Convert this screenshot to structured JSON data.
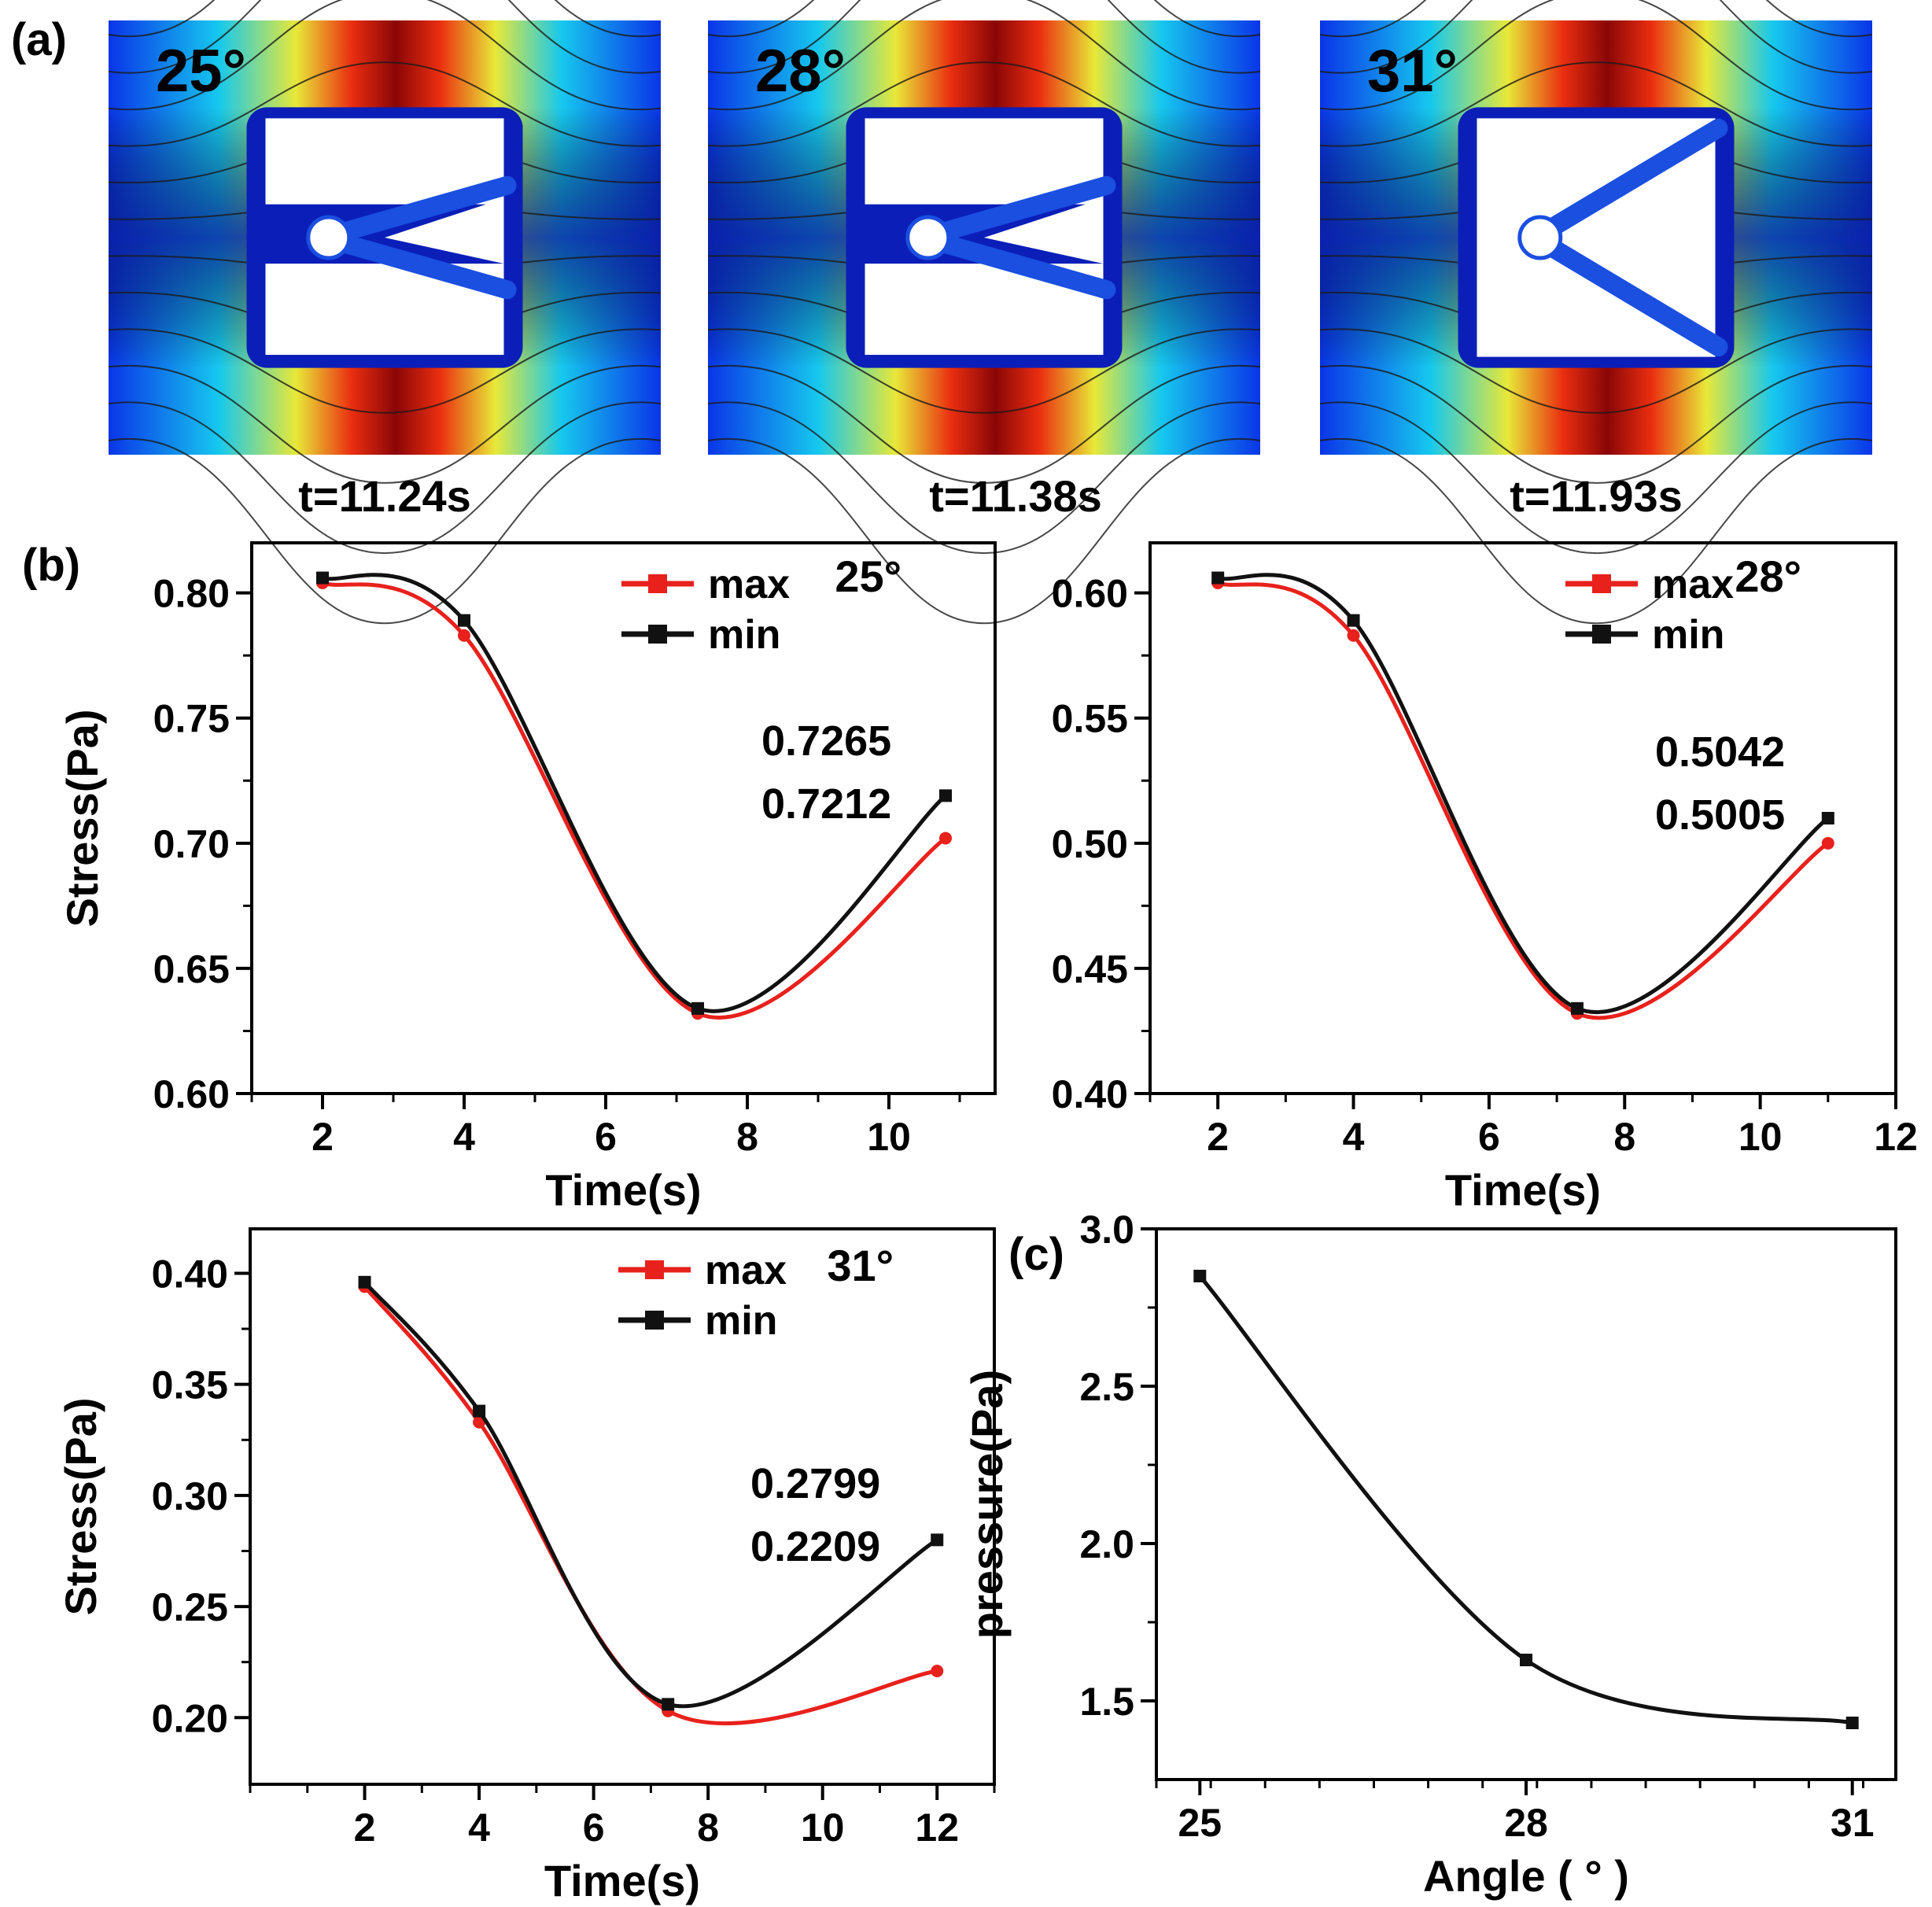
{
  "panel_labels": {
    "a": "(a)",
    "b": "(b)",
    "c": "(c)"
  },
  "simulations": [
    {
      "angle": "25°",
      "time": "t=11.24s",
      "arm_angle_deg": 25
    },
    {
      "angle": "28°",
      "time": "t=11.38s",
      "arm_angle_deg": 28
    },
    {
      "angle": "31°",
      "time": "t=11.93s",
      "arm_angle_deg": 31
    }
  ],
  "colors": {
    "max": "#e8211c",
    "min": "#111111",
    "background": "#ffffff"
  },
  "chart_data": [
    {
      "type": "line",
      "panel": "b",
      "angle_label": "25°",
      "xlabel": "Time(s)",
      "ylabel": "Stress(Pa)",
      "xlim": [
        1,
        11.5
      ],
      "ylim": [
        0.6,
        0.82
      ],
      "xticks": [
        2,
        4,
        6,
        8,
        10
      ],
      "yticks": [
        0.6,
        0.65,
        0.7,
        0.75,
        0.8
      ],
      "ytick_labels": [
        "0.60",
        "0.65",
        "0.70",
        "0.75",
        "0.80"
      ],
      "legend": [
        "max",
        "min"
      ],
      "series": [
        {
          "name": "max",
          "x": [
            2,
            4,
            7.3,
            10.8
          ],
          "y": [
            0.804,
            0.783,
            0.632,
            0.702
          ]
        },
        {
          "name": "min",
          "x": [
            2,
            4,
            7.3,
            10.8
          ],
          "y": [
            0.806,
            0.789,
            0.634,
            0.719
          ]
        }
      ],
      "annotations": [
        "0.7265",
        "0.7212"
      ]
    },
    {
      "type": "line",
      "panel": "b",
      "angle_label": "28°",
      "xlabel": "Time(s)",
      "ylabel": "",
      "xlim": [
        1,
        12
      ],
      "ylim": [
        0.4,
        0.62
      ],
      "xticks": [
        2,
        4,
        6,
        8,
        10,
        12
      ],
      "yticks": [
        0.4,
        0.45,
        0.5,
        0.55,
        0.6
      ],
      "ytick_labels": [
        "0.40",
        "0.45",
        "0.50",
        "0.55",
        "0.60"
      ],
      "legend": [
        "max",
        "min"
      ],
      "series": [
        {
          "name": "max",
          "x": [
            2,
            4,
            7.3,
            11
          ],
          "y": [
            0.604,
            0.583,
            0.432,
            0.5
          ]
        },
        {
          "name": "min",
          "x": [
            2,
            4,
            7.3,
            11
          ],
          "y": [
            0.606,
            0.589,
            0.434,
            0.51
          ]
        }
      ],
      "annotations": [
        "0.5042",
        "0.5005"
      ]
    },
    {
      "type": "line",
      "panel": "b",
      "angle_label": "31°",
      "xlabel": "Time(s)",
      "ylabel": "Stress(Pa)",
      "xlim": [
        0,
        13
      ],
      "ylim": [
        0.17,
        0.42
      ],
      "xticks": [
        2,
        4,
        6,
        8,
        10,
        12
      ],
      "yticks": [
        0.2,
        0.25,
        0.3,
        0.35,
        0.4
      ],
      "ytick_labels": [
        "0.20",
        "0.25",
        "0.30",
        "0.35",
        "0.40"
      ],
      "legend": [
        "max",
        "min"
      ],
      "series": [
        {
          "name": "max",
          "x": [
            2,
            4,
            7.3,
            12
          ],
          "y": [
            0.394,
            0.333,
            0.203,
            0.221
          ]
        },
        {
          "name": "min",
          "x": [
            2,
            4,
            7.3,
            12
          ],
          "y": [
            0.396,
            0.338,
            0.206,
            0.28
          ]
        }
      ],
      "annotations": [
        "0.2799",
        "0.2209"
      ]
    },
    {
      "type": "line",
      "panel": "c",
      "xlabel": "Angle ( °  )",
      "ylabel": "pressure(Pa)",
      "xlim": [
        24.6,
        31.4
      ],
      "ylim": [
        1.25,
        3.0
      ],
      "xticks": [
        25,
        28,
        31
      ],
      "yticks": [
        1.5,
        2.0,
        2.5,
        3.0
      ],
      "ytick_labels": [
        "1.5",
        "2.0",
        "2.5",
        "3.0"
      ],
      "series": [
        {
          "name": "pressure",
          "x": [
            25,
            28,
            31
          ],
          "y": [
            2.85,
            1.63,
            1.43
          ]
        }
      ]
    }
  ]
}
